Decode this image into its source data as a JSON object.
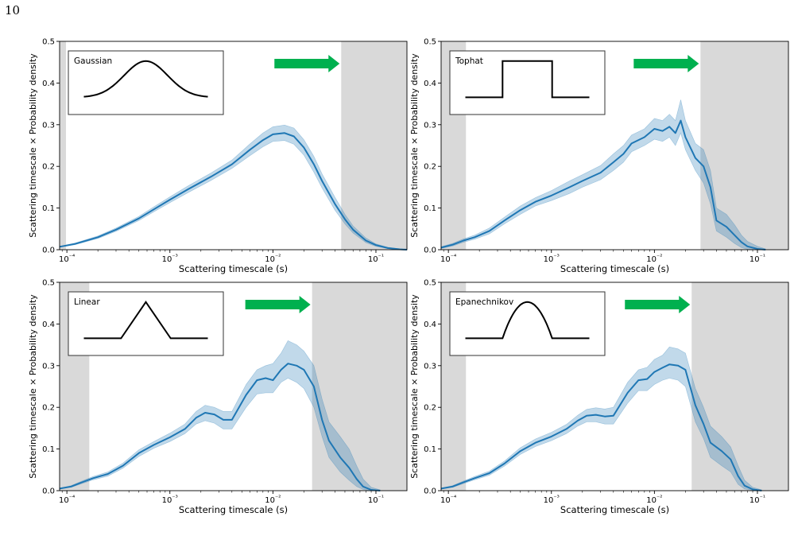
{
  "page": {
    "number": "10"
  },
  "colors": {
    "line": "#1f77b4",
    "band": "#1f77b4",
    "shade": "#d9d9d9",
    "arrow": "#00b04f"
  },
  "chart_data": [
    {
      "type": "line",
      "panel": "Gaussian",
      "kernel_label": "Gaussian",
      "kernel_shape": "gaussian",
      "xlabel": "Scattering timescale (s)",
      "ylabel": "Scattering timescale × Probability density",
      "xscale": "log",
      "xlim": [
        8.5e-05,
        0.2
      ],
      "ylim": [
        0,
        0.5
      ],
      "xticks": [
        "10⁻⁴",
        "10⁻³",
        "10⁻²",
        "10⁻¹"
      ],
      "yticks": [
        "0.0",
        "0.1",
        "0.2",
        "0.3",
        "0.4",
        "0.5"
      ],
      "shaded_regions": [
        [
          8.5e-05,
          9.8e-05
        ],
        [
          0.046,
          0.2
        ]
      ],
      "arrow": "right",
      "series": [
        {
          "x": [
            8.5e-05,
            0.00012,
            0.0002,
            0.0003,
            0.0005,
            0.0007,
            0.001,
            0.0015,
            0.0025,
            0.004,
            0.006,
            0.008,
            0.01,
            0.013,
            0.016,
            0.02,
            0.025,
            0.03,
            0.04,
            0.05,
            0.06,
            0.08,
            0.1,
            0.13,
            0.17,
            0.2
          ],
          "y": [
            0.007,
            0.014,
            0.03,
            0.048,
            0.075,
            0.097,
            0.12,
            0.145,
            0.175,
            0.205,
            0.24,
            0.263,
            0.277,
            0.28,
            0.272,
            0.245,
            0.205,
            0.165,
            0.11,
            0.073,
            0.048,
            0.022,
            0.011,
            0.004,
            0.001,
            0.0
          ],
          "lower": [
            0.006,
            0.012,
            0.027,
            0.044,
            0.07,
            0.091,
            0.113,
            0.137,
            0.166,
            0.195,
            0.226,
            0.247,
            0.26,
            0.262,
            0.253,
            0.227,
            0.186,
            0.148,
            0.095,
            0.062,
            0.04,
            0.017,
            0.008,
            0.003,
            0.001,
            0.0
          ],
          "upper": [
            0.008,
            0.016,
            0.033,
            0.052,
            0.08,
            0.103,
            0.127,
            0.153,
            0.184,
            0.215,
            0.254,
            0.28,
            0.295,
            0.299,
            0.292,
            0.264,
            0.224,
            0.182,
            0.126,
            0.085,
            0.057,
            0.028,
            0.014,
            0.006,
            0.002,
            0.0
          ]
        }
      ]
    },
    {
      "type": "line",
      "panel": "Tophat",
      "kernel_label": "Tophat",
      "kernel_shape": "tophat",
      "xlabel": "Scattering timescale (s)",
      "ylabel": "Scattering timescale × Probability density",
      "xscale": "log",
      "xlim": [
        8.5e-05,
        0.2
      ],
      "ylim": [
        0,
        0.5
      ],
      "xticks": [
        "10⁻⁴",
        "10⁻³",
        "10⁻²",
        "10⁻¹"
      ],
      "yticks": [
        "0.0",
        "0.1",
        "0.2",
        "0.3",
        "0.4",
        "0.5"
      ],
      "shaded_regions": [
        [
          8.5e-05,
          0.000148
        ],
        [
          0.028,
          0.2
        ]
      ],
      "arrow": "right",
      "series": [
        {
          "x": [
            8.5e-05,
            0.00011,
            0.00014,
            0.00018,
            0.00025,
            0.00035,
            0.0005,
            0.0007,
            0.001,
            0.0015,
            0.002,
            0.003,
            0.004,
            0.005,
            0.006,
            0.008,
            0.01,
            0.012,
            0.014,
            0.016,
            0.018,
            0.02,
            0.025,
            0.03,
            0.035,
            0.04,
            0.05,
            0.06,
            0.07,
            0.08,
            0.1,
            0.12
          ],
          "y": [
            0.005,
            0.012,
            0.022,
            0.03,
            0.045,
            0.07,
            0.095,
            0.115,
            0.13,
            0.15,
            0.165,
            0.185,
            0.21,
            0.23,
            0.255,
            0.27,
            0.29,
            0.285,
            0.295,
            0.28,
            0.31,
            0.27,
            0.22,
            0.2,
            0.15,
            0.07,
            0.055,
            0.035,
            0.018,
            0.008,
            0.002,
            0.0
          ],
          "lower": [
            0.003,
            0.009,
            0.018,
            0.025,
            0.038,
            0.062,
            0.085,
            0.105,
            0.118,
            0.135,
            0.15,
            0.168,
            0.19,
            0.21,
            0.235,
            0.25,
            0.265,
            0.26,
            0.27,
            0.25,
            0.28,
            0.24,
            0.19,
            0.16,
            0.11,
            0.045,
            0.03,
            0.015,
            0.005,
            0.001,
            0.0,
            0.0
          ],
          "upper": [
            0.007,
            0.015,
            0.026,
            0.035,
            0.052,
            0.078,
            0.105,
            0.125,
            0.142,
            0.165,
            0.18,
            0.202,
            0.23,
            0.25,
            0.275,
            0.29,
            0.315,
            0.31,
            0.325,
            0.31,
            0.36,
            0.31,
            0.255,
            0.24,
            0.19,
            0.1,
            0.085,
            0.06,
            0.035,
            0.02,
            0.008,
            0.002
          ]
        }
      ]
    },
    {
      "type": "line",
      "panel": "Linear",
      "kernel_label": "Linear",
      "kernel_shape": "linear",
      "xlabel": "Scattering timescale (s)",
      "ylabel": "Scattering timescale × Probability density",
      "xscale": "log",
      "xlim": [
        8.5e-05,
        0.2
      ],
      "ylim": [
        0,
        0.5
      ],
      "xticks": [
        "10⁻⁴",
        "10⁻³",
        "10⁻²",
        "10⁻¹"
      ],
      "yticks": [
        "0.0",
        "0.1",
        "0.2",
        "0.3",
        "0.4",
        "0.5"
      ],
      "shaded_regions": [
        [
          8.5e-05,
          0.000165
        ],
        [
          0.024,
          0.2
        ]
      ],
      "arrow": "right",
      "series": [
        {
          "x": [
            8.5e-05,
            0.00011,
            0.00014,
            0.00018,
            0.00025,
            0.00035,
            0.0005,
            0.0007,
            0.001,
            0.0014,
            0.0018,
            0.0022,
            0.0027,
            0.0033,
            0.004,
            0.0055,
            0.007,
            0.0085,
            0.01,
            0.012,
            0.014,
            0.017,
            0.02,
            0.025,
            0.03,
            0.035,
            0.045,
            0.055,
            0.065,
            0.075,
            0.09,
            0.11
          ],
          "y": [
            0.005,
            0.01,
            0.02,
            0.03,
            0.04,
            0.06,
            0.09,
            0.11,
            0.128,
            0.148,
            0.175,
            0.187,
            0.183,
            0.17,
            0.17,
            0.23,
            0.265,
            0.27,
            0.265,
            0.29,
            0.305,
            0.3,
            0.29,
            0.25,
            0.17,
            0.12,
            0.08,
            0.055,
            0.028,
            0.01,
            0.002,
            0.0
          ],
          "lower": [
            0.004,
            0.008,
            0.017,
            0.026,
            0.035,
            0.054,
            0.082,
            0.102,
            0.118,
            0.137,
            0.16,
            0.168,
            0.162,
            0.148,
            0.148,
            0.2,
            0.232,
            0.235,
            0.235,
            0.26,
            0.27,
            0.26,
            0.245,
            0.2,
            0.13,
            0.08,
            0.045,
            0.025,
            0.01,
            0.003,
            0.0,
            0.0
          ],
          "upper": [
            0.006,
            0.012,
            0.023,
            0.034,
            0.045,
            0.066,
            0.098,
            0.118,
            0.138,
            0.16,
            0.19,
            0.205,
            0.2,
            0.19,
            0.19,
            0.255,
            0.29,
            0.3,
            0.305,
            0.33,
            0.36,
            0.35,
            0.335,
            0.3,
            0.22,
            0.165,
            0.13,
            0.1,
            0.06,
            0.028,
            0.008,
            0.002
          ]
        }
      ]
    },
    {
      "type": "line",
      "panel": "Epanechnikov",
      "kernel_label": "Epanechnikov",
      "kernel_shape": "epanechnikov",
      "xlabel": "Scattering timescale (s)",
      "ylabel": "Scattering timescale × Probability density",
      "xscale": "log",
      "xlim": [
        8.5e-05,
        0.2
      ],
      "ylim": [
        0,
        0.5
      ],
      "xticks": [
        "10⁻⁴",
        "10⁻³",
        "10⁻²",
        "10⁻¹"
      ],
      "yticks": [
        "0.0",
        "0.1",
        "0.2",
        "0.3",
        "0.4",
        "0.5"
      ],
      "shaded_regions": [
        [
          8.5e-05,
          0.000148
        ],
        [
          0.023,
          0.2
        ]
      ],
      "arrow": "right",
      "series": [
        {
          "x": [
            8.5e-05,
            0.00011,
            0.00014,
            0.00018,
            0.00025,
            0.00035,
            0.0005,
            0.0007,
            0.001,
            0.0014,
            0.0018,
            0.0022,
            0.0027,
            0.0033,
            0.004,
            0.0055,
            0.007,
            0.0085,
            0.01,
            0.012,
            0.014,
            0.017,
            0.02,
            0.025,
            0.03,
            0.035,
            0.045,
            0.055,
            0.065,
            0.075,
            0.09,
            0.11
          ],
          "y": [
            0.005,
            0.01,
            0.02,
            0.03,
            0.042,
            0.065,
            0.095,
            0.115,
            0.13,
            0.148,
            0.168,
            0.18,
            0.182,
            0.178,
            0.18,
            0.235,
            0.265,
            0.268,
            0.285,
            0.295,
            0.303,
            0.3,
            0.29,
            0.205,
            0.16,
            0.115,
            0.095,
            0.075,
            0.035,
            0.012,
            0.003,
            0.0
          ],
          "lower": [
            0.004,
            0.008,
            0.017,
            0.026,
            0.037,
            0.059,
            0.087,
            0.106,
            0.12,
            0.137,
            0.155,
            0.165,
            0.165,
            0.16,
            0.16,
            0.21,
            0.24,
            0.24,
            0.255,
            0.265,
            0.27,
            0.265,
            0.25,
            0.165,
            0.125,
            0.08,
            0.06,
            0.045,
            0.015,
            0.004,
            0.001,
            0.0
          ],
          "upper": [
            0.006,
            0.012,
            0.023,
            0.034,
            0.047,
            0.071,
            0.103,
            0.124,
            0.14,
            0.159,
            0.181,
            0.195,
            0.199,
            0.196,
            0.2,
            0.26,
            0.29,
            0.296,
            0.315,
            0.325,
            0.345,
            0.34,
            0.33,
            0.245,
            0.2,
            0.155,
            0.13,
            0.105,
            0.06,
            0.025,
            0.008,
            0.002
          ]
        }
      ]
    }
  ]
}
